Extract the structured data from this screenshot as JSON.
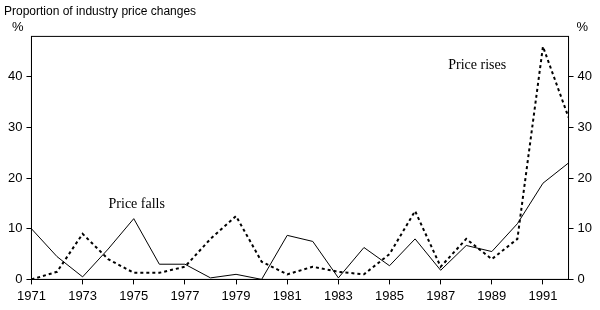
{
  "chart_data": {
    "type": "line",
    "title": "Proportion of industry price changes",
    "ylabel": "%",
    "y2label": "%",
    "x": [
      1971,
      1972,
      1973,
      1974,
      1975,
      1976,
      1977,
      1978,
      1979,
      1980,
      1981,
      1982,
      1983,
      1984,
      1985,
      1986,
      1987,
      1988,
      1989,
      1990,
      1991,
      1992
    ],
    "series": [
      {
        "name": "Price falls",
        "color": "#000000",
        "line_style": "solid",
        "marker": "none",
        "values": [
          10,
          4.5,
          0.5,
          6,
          12,
          3,
          3,
          0.3,
          1,
          0,
          8.7,
          7.5,
          0.3,
          6.3,
          2.7,
          8,
          1.8,
          6.7,
          5.5,
          11,
          19,
          23
        ]
      },
      {
        "name": "Price rises",
        "color": "#000000",
        "line_style": "dashed",
        "marker": "none",
        "values": [
          0,
          1.5,
          9,
          4,
          1.3,
          1.3,
          2.5,
          8,
          12.5,
          3.5,
          1,
          2.5,
          1.5,
          1,
          5,
          13.5,
          2.5,
          8,
          4,
          8,
          46,
          32
        ]
      }
    ],
    "xlim": [
      1971,
      1992
    ],
    "xticks": [
      1971,
      1973,
      1975,
      1977,
      1979,
      1981,
      1983,
      1985,
      1987,
      1989,
      1991
    ],
    "ylim": [
      0,
      48
    ],
    "yticks": [
      0,
      10,
      20,
      30,
      40
    ],
    "y2lim": [
      0,
      48
    ],
    "y2ticks": [
      0,
      10,
      20,
      30,
      40
    ],
    "grid": false
  }
}
